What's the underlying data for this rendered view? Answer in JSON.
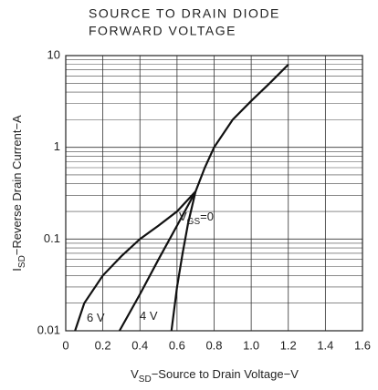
{
  "chart_data": {
    "type": "line",
    "title": [
      "SOURCE TO DRAIN DIODE",
      "FORWARD VOLTAGE"
    ],
    "xlabel": {
      "main": "V",
      "sub": "SD",
      "rest": "−Source to Drain Voltage−V"
    },
    "ylabel": {
      "main": "I",
      "sub": "SD",
      "rest": "−Reverse Drain Current−A"
    },
    "xlim": [
      0,
      1.6
    ],
    "xticks": [
      0,
      0.2,
      0.4,
      0.6,
      0.8,
      {
        "value": 1,
        "label": "1.0"
      },
      1.2,
      1.4,
      1.6
    ],
    "ylim": [
      0.01,
      10
    ],
    "yticks": [
      0.01,
      0.1,
      1,
      10
    ],
    "log_y": true,
    "grid": true,
    "yminor": [
      0.02,
      0.03,
      0.04,
      0.05,
      0.06,
      0.07,
      0.08,
      0.09,
      0.2,
      0.3,
      0.4,
      0.5,
      0.6,
      0.7,
      0.8,
      0.9,
      2,
      3,
      4,
      5,
      6,
      7,
      8,
      9
    ],
    "color": "#111111",
    "series": [
      {
        "name": {
          "main": "6 V"
        },
        "x": [
          0.05,
          0.1,
          0.2,
          0.3,
          0.4,
          0.5,
          0.6,
          0.7,
          0.75,
          0.8,
          0.9,
          1.0,
          1.1,
          1.2
        ],
        "values": [
          0.01,
          0.02,
          0.04,
          0.065,
          0.1,
          0.14,
          0.2,
          0.33,
          0.6,
          1.0,
          2.0,
          3.2,
          5,
          8
        ]
      },
      {
        "name": {
          "main": "4 V"
        },
        "x": [
          0.29,
          0.4,
          0.5,
          0.6,
          0.7
        ],
        "values": [
          0.01,
          0.025,
          0.06,
          0.14,
          0.33
        ]
      },
      {
        "name": {
          "main": "V",
          "sub": "GS",
          "rest": "=0"
        },
        "x": [
          0.57,
          0.6,
          0.63,
          0.66,
          0.7
        ],
        "values": [
          0.01,
          0.03,
          0.07,
          0.15,
          0.33
        ]
      }
    ]
  }
}
